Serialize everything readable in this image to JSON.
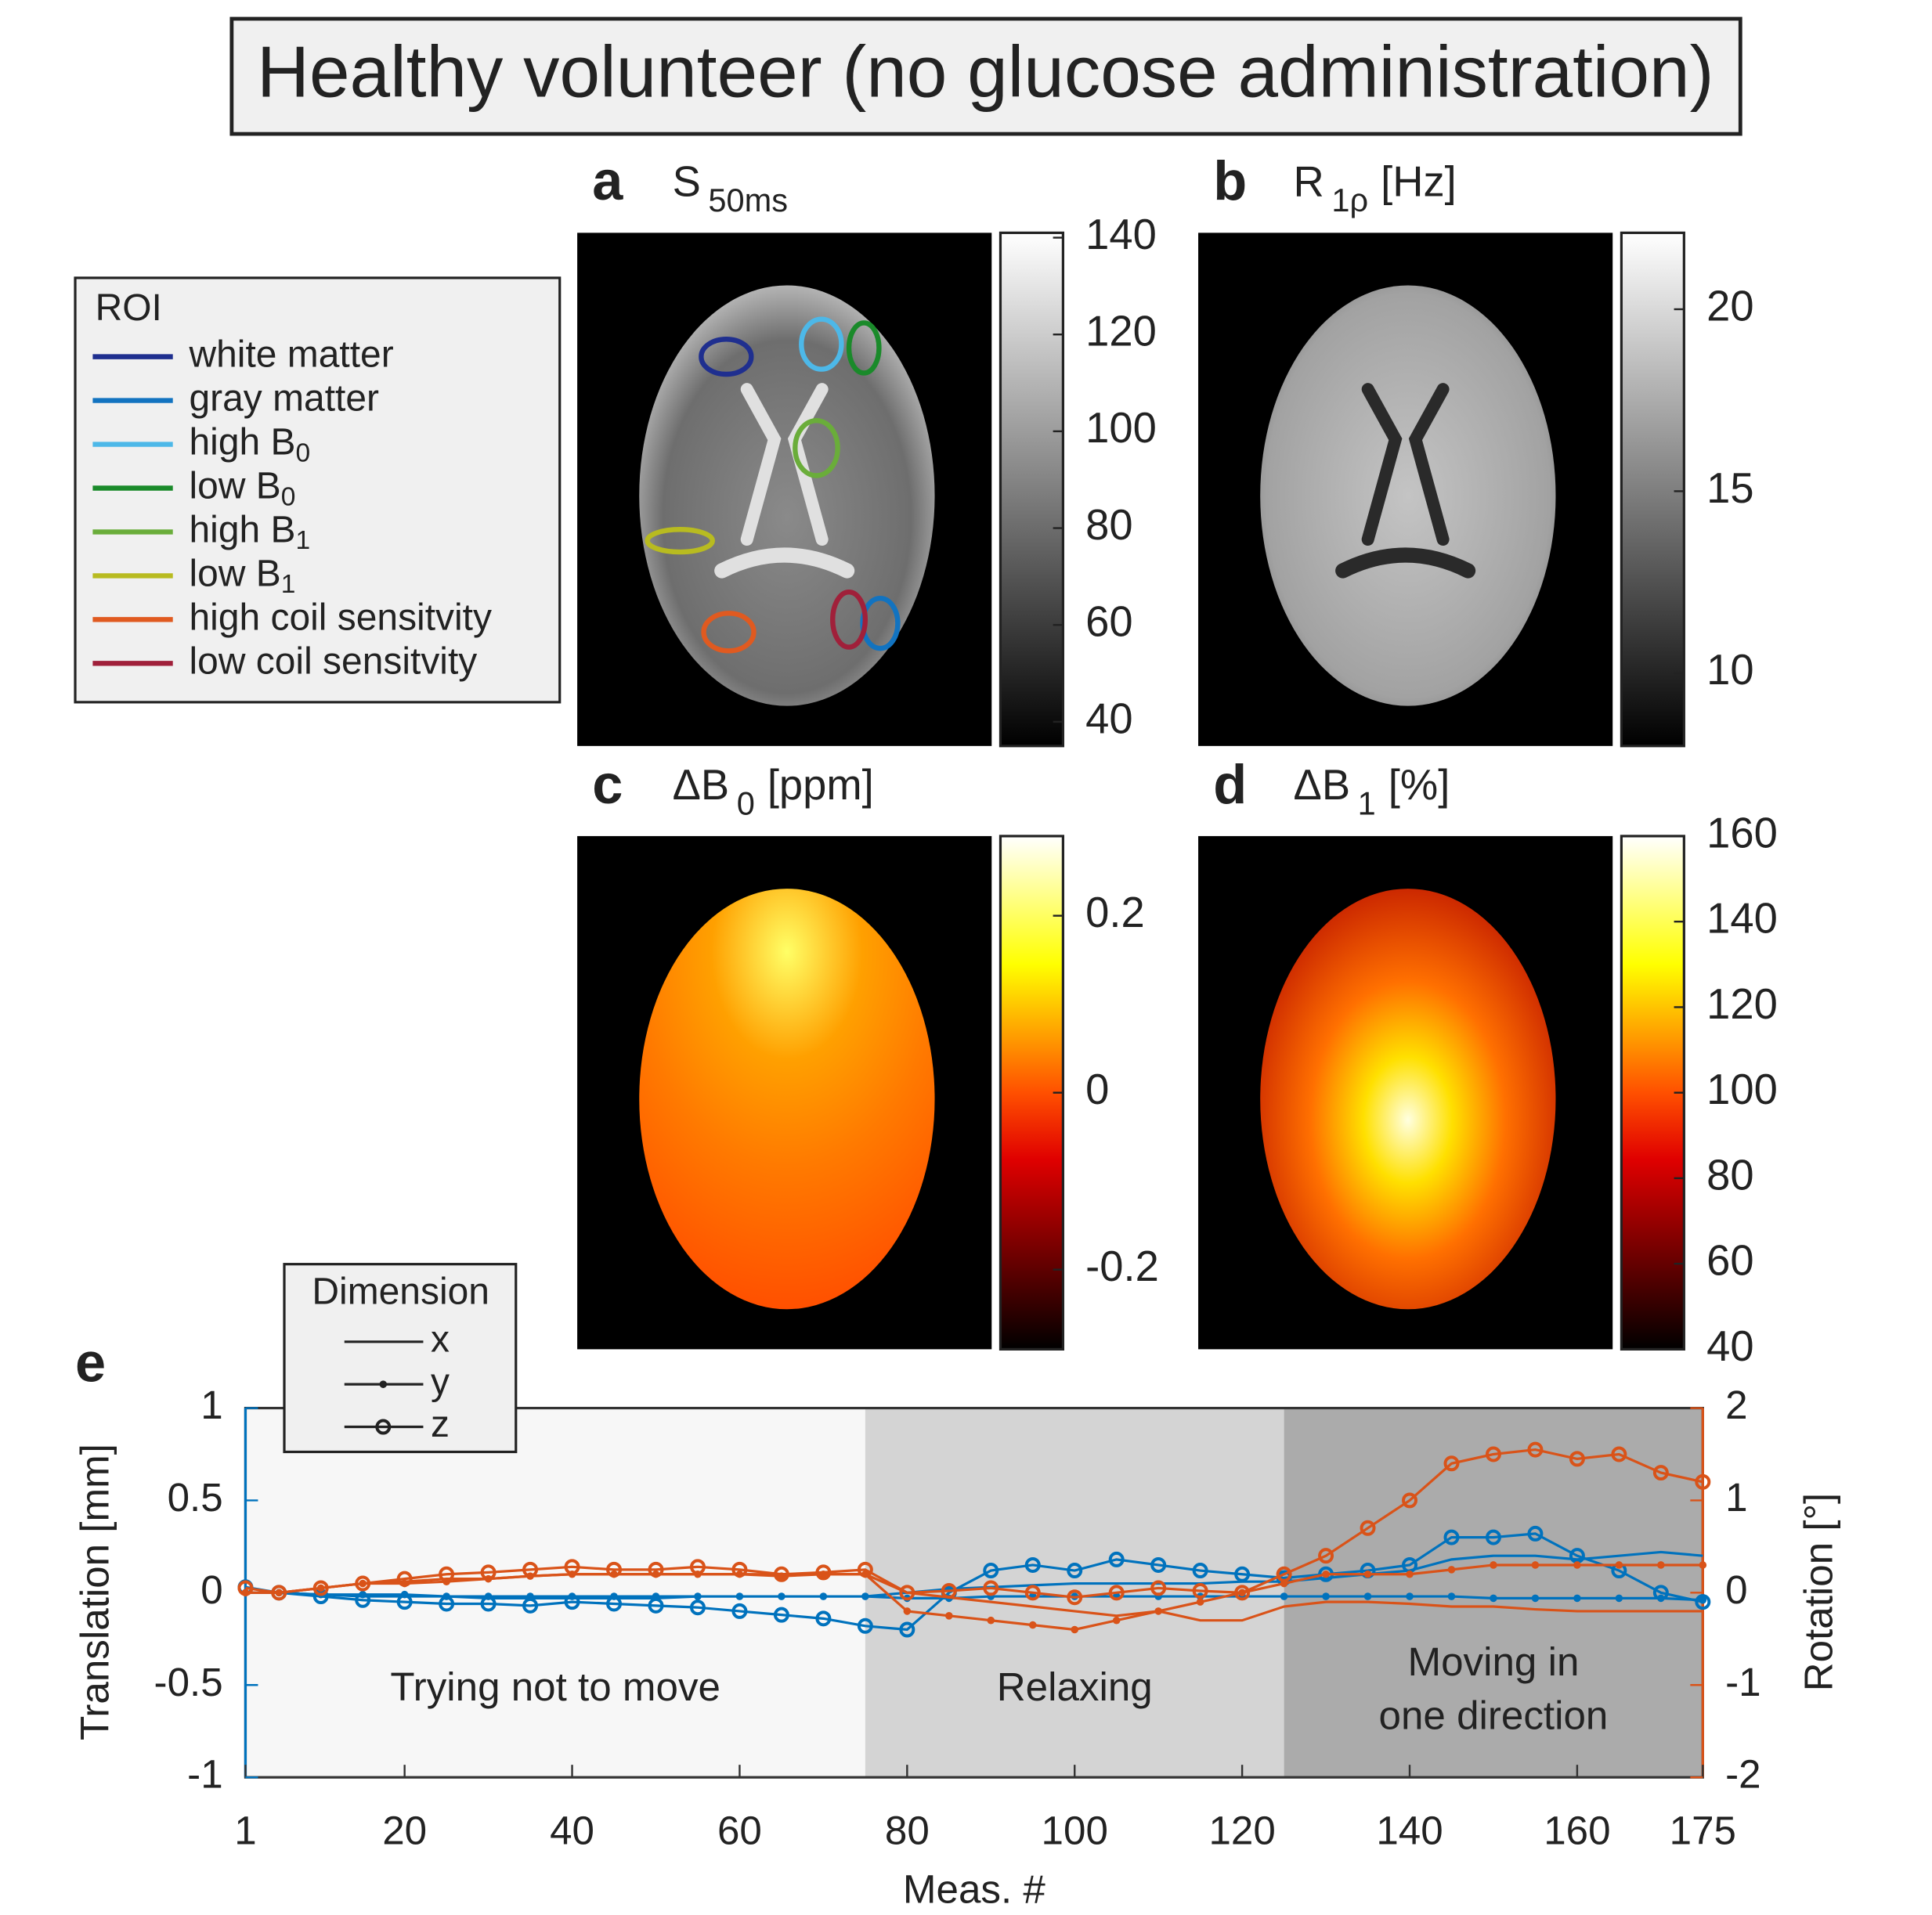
{
  "title": "Healthy volunteer (no glucose administration)",
  "roi_legend": {
    "title": "ROI",
    "entries": [
      {
        "main": "white matter",
        "color": "#1f2f8f"
      },
      {
        "main": "gray matter",
        "color": "#1273c0"
      },
      {
        "main": "high B",
        "sub": "0",
        "color": "#4db8e8"
      },
      {
        "main": "low B",
        "sub": "0",
        "color": "#1a8a2a"
      },
      {
        "main": "high B",
        "sub": "1",
        "color": "#6aad3a"
      },
      {
        "main": "low B",
        "sub": "1",
        "color": "#b8bb20"
      },
      {
        "main": "high coil sensitvity",
        "color": "#e05a20"
      },
      {
        "main": "low coil sensitvity",
        "color": "#a0203a"
      }
    ]
  },
  "panels": [
    {
      "letter": "a",
      "title": {
        "main": "S",
        "sub": "50ms"
      },
      "colormap": "gray",
      "clim": [
        35,
        141
      ],
      "ticks": [
        40,
        60,
        80,
        100,
        120,
        140
      ]
    },
    {
      "letter": "b",
      "title": {
        "main": "R",
        "sub": "1ρ",
        "unit": "[Hz]"
      },
      "colormap": "gray",
      "clim": [
        8,
        22.1
      ],
      "ticks": [
        10,
        15,
        20
      ]
    },
    {
      "letter": "c",
      "title": {
        "main": "ΔB",
        "sub": "0",
        "unit": "[ppm]"
      },
      "colormap": "hot",
      "clim": [
        -0.29,
        0.29
      ],
      "ticks": [
        -0.2,
        0,
        0.2
      ]
    },
    {
      "letter": "d",
      "title": {
        "main": "ΔB",
        "sub": "1",
        "unit": "[%]"
      },
      "colormap": "hot",
      "clim": [
        40,
        160
      ],
      "ticks": [
        40,
        60,
        80,
        100,
        120,
        140,
        160
      ]
    }
  ],
  "chart_data": {
    "type": "line",
    "panel_label": "e",
    "xlabel": "Meas. #",
    "ylabel": "Translation [mm]",
    "y2label": "Rotation [°]",
    "ycolor": "#0072bd",
    "y2color": "#d95319",
    "xlim": [
      1,
      175
    ],
    "xticks": [
      1,
      20,
      40,
      60,
      80,
      100,
      120,
      140,
      160,
      175
    ],
    "ylim": [
      -1,
      1
    ],
    "yticks": [
      -1,
      -0.5,
      0,
      0.5,
      1
    ],
    "y2lim": [
      -2,
      2
    ],
    "y2ticks": [
      -2,
      -1,
      0,
      1,
      2
    ],
    "regions": [
      {
        "start": 1,
        "end": 75,
        "color": "#f7f7f7",
        "lines": [
          "Trying not to move"
        ]
      },
      {
        "start": 75,
        "end": 125,
        "color": "#d4d4d4",
        "lines": [
          "Relaxing"
        ]
      },
      {
        "start": 125,
        "end": 175,
        "color": "#ababab",
        "lines": [
          "Moving in",
          "one direction"
        ]
      }
    ],
    "legend": {
      "title": "Dimension",
      "entries": [
        {
          "label": "x",
          "marker": "none"
        },
        {
          "label": "y",
          "marker": "dot"
        },
        {
          "label": "z",
          "marker": "circle"
        }
      ]
    },
    "x": [
      1,
      5,
      10,
      15,
      20,
      25,
      30,
      35,
      40,
      45,
      50,
      55,
      60,
      65,
      70,
      75,
      80,
      85,
      90,
      95,
      100,
      105,
      110,
      115,
      120,
      125,
      130,
      135,
      140,
      145,
      150,
      155,
      160,
      165,
      170,
      175
    ],
    "series": [
      {
        "color": "#0072bd",
        "marker": "none",
        "values": [
          0,
          0,
          -0.01,
          -0.02,
          -0.02,
          -0.02,
          -0.03,
          -0.03,
          -0.03,
          -0.03,
          -0.03,
          -0.02,
          -0.02,
          -0.02,
          -0.02,
          -0.02,
          0,
          0.02,
          0.03,
          0.04,
          0.05,
          0.05,
          0.05,
          0.05,
          0.06,
          0.06,
          0.08,
          0.1,
          0.12,
          0.18,
          0.2,
          0.2,
          0.18,
          0.2,
          0.22,
          0.2
        ]
      },
      {
        "color": "#0072bd",
        "marker": "dot",
        "values": [
          0,
          0,
          -0.01,
          -0.01,
          -0.01,
          -0.02,
          -0.02,
          -0.02,
          -0.02,
          -0.02,
          -0.02,
          -0.02,
          -0.02,
          -0.02,
          -0.02,
          -0.02,
          -0.03,
          -0.03,
          -0.02,
          -0.02,
          -0.02,
          -0.02,
          -0.02,
          -0.02,
          -0.02,
          -0.02,
          -0.02,
          -0.02,
          -0.02,
          -0.02,
          -0.03,
          -0.03,
          -0.03,
          -0.03,
          -0.03,
          -0.04
        ]
      },
      {
        "color": "#0072bd",
        "marker": "circle",
        "values": [
          0.03,
          0,
          -0.02,
          -0.04,
          -0.05,
          -0.06,
          -0.06,
          -0.07,
          -0.05,
          -0.06,
          -0.07,
          -0.08,
          -0.1,
          -0.12,
          -0.14,
          -0.18,
          -0.2,
          0,
          0.12,
          0.15,
          0.12,
          0.18,
          0.15,
          0.12,
          0.1,
          0.08,
          0.1,
          0.12,
          0.15,
          0.3,
          0.3,
          0.32,
          0.2,
          0.12,
          0,
          -0.05
        ]
      },
      {
        "color": "#d95319",
        "marker": "none",
        "axis": "y2",
        "values": [
          0,
          0,
          0.05,
          0.1,
          0.12,
          0.15,
          0.15,
          0.18,
          0.2,
          0.2,
          0.2,
          0.2,
          0.2,
          0.2,
          0.2,
          0.2,
          0,
          -0.05,
          -0.1,
          -0.15,
          -0.2,
          -0.25,
          -0.2,
          -0.3,
          -0.3,
          -0.15,
          -0.1,
          -0.1,
          -0.12,
          -0.15,
          -0.15,
          -0.18,
          -0.2,
          -0.2,
          -0.2,
          -0.2
        ]
      },
      {
        "color": "#d95319",
        "marker": "dot",
        "axis": "y2",
        "values": [
          0,
          0,
          0.05,
          0.1,
          0.1,
          0.12,
          0.15,
          0.18,
          0.2,
          0.2,
          0.2,
          0.2,
          0.2,
          0.18,
          0.2,
          0.2,
          -0.2,
          -0.25,
          -0.3,
          -0.35,
          -0.4,
          -0.3,
          -0.2,
          -0.1,
          0,
          0.1,
          0.2,
          0.2,
          0.2,
          0.25,
          0.3,
          0.3,
          0.3,
          0.3,
          0.3,
          0.3
        ]
      },
      {
        "color": "#d95319",
        "marker": "circle",
        "axis": "y2",
        "values": [
          0.05,
          0,
          0.05,
          0.1,
          0.15,
          0.2,
          0.22,
          0.25,
          0.28,
          0.25,
          0.25,
          0.28,
          0.25,
          0.2,
          0.22,
          0.25,
          0,
          0.02,
          0.05,
          0,
          -0.05,
          0,
          0.05,
          0.02,
          0,
          0.2,
          0.4,
          0.7,
          1.0,
          1.4,
          1.5,
          1.55,
          1.45,
          1.5,
          1.3,
          1.2
        ]
      }
    ]
  }
}
